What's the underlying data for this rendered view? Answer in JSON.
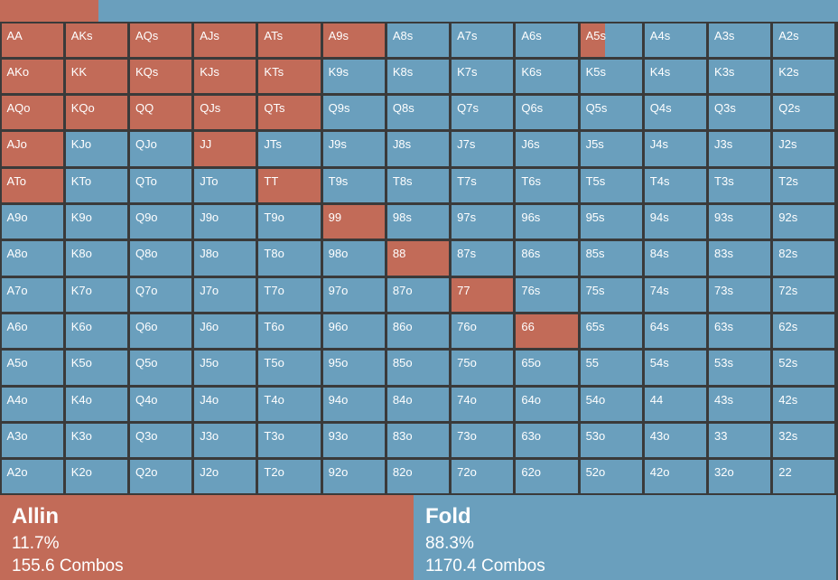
{
  "range_bar": {
    "allin_fraction": 0.117
  },
  "colors": {
    "allin": "#c26b58",
    "fold": "#6a9fbd",
    "border": "#3a3a3a",
    "text": "#ffffff"
  },
  "grid": {
    "rows": [
      [
        [
          "AA",
          1
        ],
        [
          "AKs",
          1
        ],
        [
          "AQs",
          1
        ],
        [
          "AJs",
          1
        ],
        [
          "ATs",
          1
        ],
        [
          "A9s",
          1
        ],
        [
          "A8s",
          0
        ],
        [
          "A7s",
          0
        ],
        [
          "A6s",
          0
        ],
        [
          "A5s",
          0.4
        ],
        [
          "A4s",
          0
        ],
        [
          "A3s",
          0
        ],
        [
          "A2s",
          0
        ]
      ],
      [
        [
          "AKo",
          1
        ],
        [
          "KK",
          1
        ],
        [
          "KQs",
          1
        ],
        [
          "KJs",
          1
        ],
        [
          "KTs",
          1
        ],
        [
          "K9s",
          0
        ],
        [
          "K8s",
          0
        ],
        [
          "K7s",
          0
        ],
        [
          "K6s",
          0
        ],
        [
          "K5s",
          0
        ],
        [
          "K4s",
          0
        ],
        [
          "K3s",
          0
        ],
        [
          "K2s",
          0
        ]
      ],
      [
        [
          "AQo",
          1
        ],
        [
          "KQo",
          1
        ],
        [
          "QQ",
          1
        ],
        [
          "QJs",
          1
        ],
        [
          "QTs",
          1
        ],
        [
          "Q9s",
          0
        ],
        [
          "Q8s",
          0
        ],
        [
          "Q7s",
          0
        ],
        [
          "Q6s",
          0
        ],
        [
          "Q5s",
          0
        ],
        [
          "Q4s",
          0
        ],
        [
          "Q3s",
          0
        ],
        [
          "Q2s",
          0
        ]
      ],
      [
        [
          "AJo",
          1
        ],
        [
          "KJo",
          0
        ],
        [
          "QJo",
          0
        ],
        [
          "JJ",
          1
        ],
        [
          "JTs",
          0
        ],
        [
          "J9s",
          0
        ],
        [
          "J8s",
          0
        ],
        [
          "J7s",
          0
        ],
        [
          "J6s",
          0
        ],
        [
          "J5s",
          0
        ],
        [
          "J4s",
          0
        ],
        [
          "J3s",
          0
        ],
        [
          "J2s",
          0
        ]
      ],
      [
        [
          "ATo",
          1
        ],
        [
          "KTo",
          0
        ],
        [
          "QTo",
          0
        ],
        [
          "JTo",
          0
        ],
        [
          "TT",
          1
        ],
        [
          "T9s",
          0
        ],
        [
          "T8s",
          0
        ],
        [
          "T7s",
          0
        ],
        [
          "T6s",
          0
        ],
        [
          "T5s",
          0
        ],
        [
          "T4s",
          0
        ],
        [
          "T3s",
          0
        ],
        [
          "T2s",
          0
        ]
      ],
      [
        [
          "A9o",
          0
        ],
        [
          "K9o",
          0
        ],
        [
          "Q9o",
          0
        ],
        [
          "J9o",
          0
        ],
        [
          "T9o",
          0
        ],
        [
          "99",
          1
        ],
        [
          "98s",
          0
        ],
        [
          "97s",
          0
        ],
        [
          "96s",
          0
        ],
        [
          "95s",
          0
        ],
        [
          "94s",
          0
        ],
        [
          "93s",
          0
        ],
        [
          "92s",
          0
        ]
      ],
      [
        [
          "A8o",
          0
        ],
        [
          "K8o",
          0
        ],
        [
          "Q8o",
          0
        ],
        [
          "J8o",
          0
        ],
        [
          "T8o",
          0
        ],
        [
          "98o",
          0
        ],
        [
          "88",
          1
        ],
        [
          "87s",
          0
        ],
        [
          "86s",
          0
        ],
        [
          "85s",
          0
        ],
        [
          "84s",
          0
        ],
        [
          "83s",
          0
        ],
        [
          "82s",
          0
        ]
      ],
      [
        [
          "A7o",
          0
        ],
        [
          "K7o",
          0
        ],
        [
          "Q7o",
          0
        ],
        [
          "J7o",
          0
        ],
        [
          "T7o",
          0
        ],
        [
          "97o",
          0
        ],
        [
          "87o",
          0
        ],
        [
          "77",
          1
        ],
        [
          "76s",
          0
        ],
        [
          "75s",
          0
        ],
        [
          "74s",
          0
        ],
        [
          "73s",
          0
        ],
        [
          "72s",
          0
        ]
      ],
      [
        [
          "A6o",
          0
        ],
        [
          "K6o",
          0
        ],
        [
          "Q6o",
          0
        ],
        [
          "J6o",
          0
        ],
        [
          "T6o",
          0
        ],
        [
          "96o",
          0
        ],
        [
          "86o",
          0
        ],
        [
          "76o",
          0
        ],
        [
          "66",
          1
        ],
        [
          "65s",
          0
        ],
        [
          "64s",
          0
        ],
        [
          "63s",
          0
        ],
        [
          "62s",
          0
        ]
      ],
      [
        [
          "A5o",
          0
        ],
        [
          "K5o",
          0
        ],
        [
          "Q5o",
          0
        ],
        [
          "J5o",
          0
        ],
        [
          "T5o",
          0
        ],
        [
          "95o",
          0
        ],
        [
          "85o",
          0
        ],
        [
          "75o",
          0
        ],
        [
          "65o",
          0
        ],
        [
          "55",
          0
        ],
        [
          "54s",
          0
        ],
        [
          "53s",
          0
        ],
        [
          "52s",
          0
        ]
      ],
      [
        [
          "A4o",
          0
        ],
        [
          "K4o",
          0
        ],
        [
          "Q4o",
          0
        ],
        [
          "J4o",
          0
        ],
        [
          "T4o",
          0
        ],
        [
          "94o",
          0
        ],
        [
          "84o",
          0
        ],
        [
          "74o",
          0
        ],
        [
          "64o",
          0
        ],
        [
          "54o",
          0
        ],
        [
          "44",
          0
        ],
        [
          "43s",
          0
        ],
        [
          "42s",
          0
        ]
      ],
      [
        [
          "A3o",
          0
        ],
        [
          "K3o",
          0
        ],
        [
          "Q3o",
          0
        ],
        [
          "J3o",
          0
        ],
        [
          "T3o",
          0
        ],
        [
          "93o",
          0
        ],
        [
          "83o",
          0
        ],
        [
          "73o",
          0
        ],
        [
          "63o",
          0
        ],
        [
          "53o",
          0
        ],
        [
          "43o",
          0
        ],
        [
          "33",
          0
        ],
        [
          "32s",
          0
        ]
      ],
      [
        [
          "A2o",
          0
        ],
        [
          "K2o",
          0
        ],
        [
          "Q2o",
          0
        ],
        [
          "J2o",
          0
        ],
        [
          "T2o",
          0
        ],
        [
          "92o",
          0
        ],
        [
          "82o",
          0
        ],
        [
          "72o",
          0
        ],
        [
          "62o",
          0
        ],
        [
          "52o",
          0
        ],
        [
          "42o",
          0
        ],
        [
          "32o",
          0
        ],
        [
          "22",
          0
        ]
      ]
    ]
  },
  "summary": {
    "allin": {
      "name": "Allin",
      "percent": "11.7%",
      "combos": "155.6 Combos"
    },
    "fold": {
      "name": "Fold",
      "percent": "88.3%",
      "combos": "1170.4 Combos"
    }
  }
}
